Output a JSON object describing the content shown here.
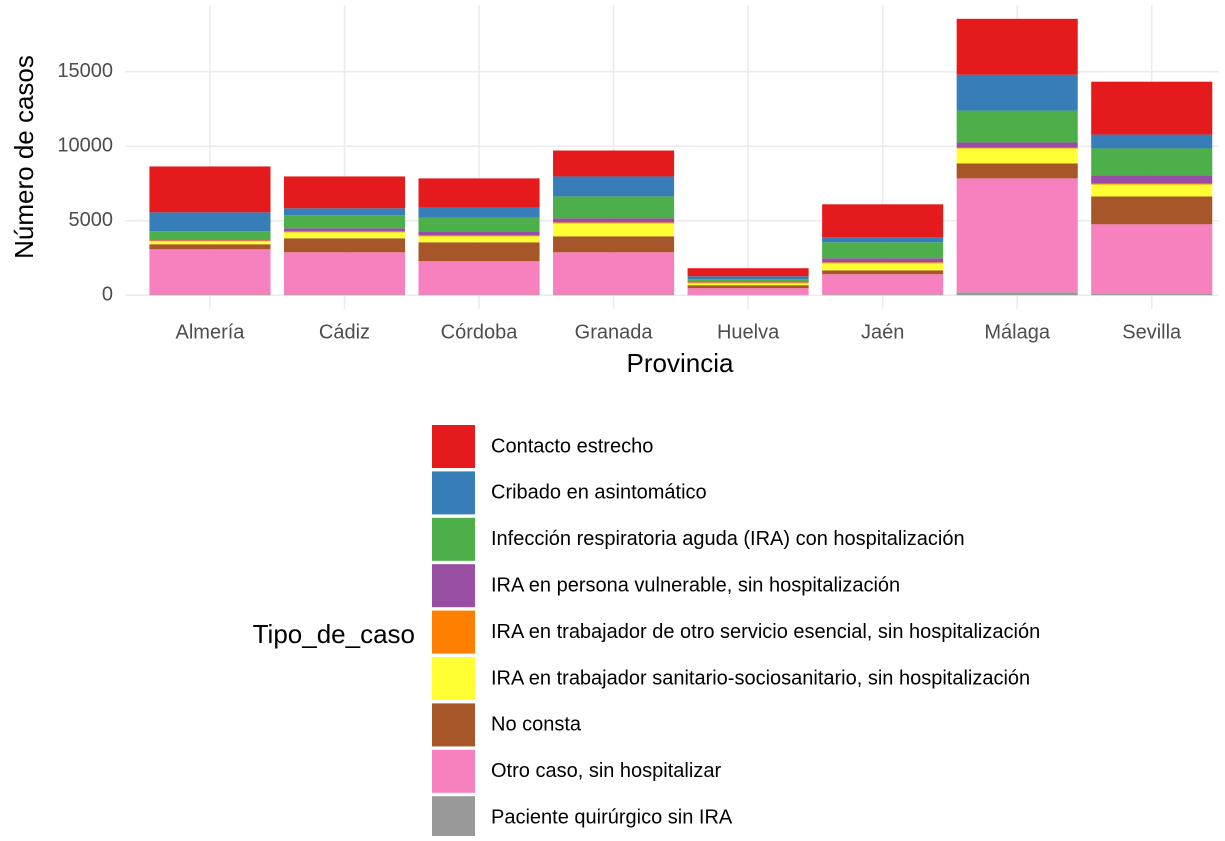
{
  "chart_data": {
    "type": "stacked_bar",
    "x_label": "Provincia",
    "y_label": "Número de casos",
    "legend_title": "Tipo_de_caso",
    "categories": [
      "Almería",
      "Cádiz",
      "Córdoba",
      "Granada",
      "Huelva",
      "Jaén",
      "Málaga",
      "Sevilla"
    ],
    "series": [
      {
        "name": "Contacto estrecho",
        "color": "#E41A1C",
        "values": [
          3080,
          2140,
          1950,
          1740,
          540,
          2220,
          3750,
          3550
        ]
      },
      {
        "name": "Cribado en asintomático",
        "color": "#377EB8",
        "values": [
          1270,
          470,
          670,
          1340,
          200,
          330,
          2410,
          930
        ]
      },
      {
        "name": "Infección respiratoria aguda (IRA) con hospitalización",
        "color": "#4DAF4A",
        "values": [
          540,
          870,
          930,
          1470,
          130,
          1070,
          2140,
          1810
        ]
      },
      {
        "name": "IRA en persona vulnerable, sin hospitalización",
        "color": "#984EA3",
        "values": [
          70,
          200,
          270,
          270,
          70,
          270,
          340,
          540
        ]
      },
      {
        "name": "IRA en trabajador de otro servicio esencial, sin hospitalización",
        "color": "#FF7F00",
        "values": [
          60,
          70,
          70,
          70,
          70,
          70,
          60,
          70
        ]
      },
      {
        "name": "IRA en trabajador sanitario-sociosanitario, sin hospitalización",
        "color": "#FFFF33",
        "values": [
          200,
          400,
          400,
          870,
          130,
          470,
          1010,
          800
        ]
      },
      {
        "name": "No consta",
        "color": "#A65628",
        "values": [
          340,
          940,
          1270,
          1070,
          200,
          260,
          1000,
          1870
        ]
      },
      {
        "name": "Otro caso, sin hospitalizar",
        "color": "#F781BF",
        "values": [
          3030,
          2830,
          2240,
          2830,
          450,
          1350,
          7640,
          4680
        ]
      },
      {
        "name": "Paciente quirúrgico sin IRA",
        "color": "#999999",
        "values": [
          50,
          50,
          40,
          50,
          20,
          60,
          200,
          80
        ]
      }
    ],
    "ylim": [
      -927,
      19477
    ],
    "yticks": [
      0,
      5000,
      10000,
      15000
    ],
    "grid": true,
    "legend_position": "bottom"
  }
}
